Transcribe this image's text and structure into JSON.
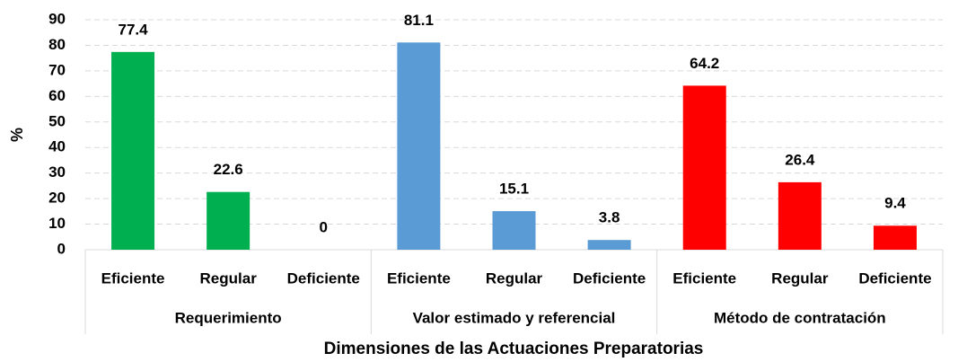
{
  "chart_data": {
    "type": "bar",
    "ylabel": "%",
    "xlabel": "Dimensiones de las Actuaciones Preparatorias",
    "categories": [
      "Eficiente",
      "Regular",
      "Deficiente"
    ],
    "series": [
      {
        "name": "Requerimiento",
        "color": "#00b050",
        "values": [
          77.4,
          22.6,
          0
        ]
      },
      {
        "name": "Valor estimado y referencial",
        "color": "#5b9bd5",
        "values": [
          81.1,
          15.1,
          3.8
        ]
      },
      {
        "name": "Método de contratación",
        "color": "#ff0000",
        "values": [
          64.2,
          26.4,
          9.4
        ]
      }
    ],
    "ylim": [
      0,
      90
    ],
    "yticks": [
      0,
      10,
      20,
      30,
      40,
      50,
      60,
      70,
      80,
      90
    ],
    "grid": true
  }
}
